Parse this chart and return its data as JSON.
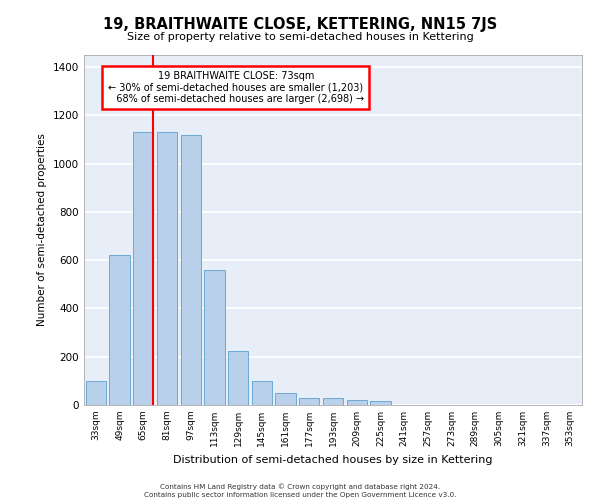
{
  "title": "19, BRAITHWAITE CLOSE, KETTERING, NN15 7JS",
  "subtitle": "Size of property relative to semi-detached houses in Kettering",
  "xlabel": "Distribution of semi-detached houses by size in Kettering",
  "ylabel": "Number of semi-detached properties",
  "categories": [
    "33sqm",
    "49sqm",
    "65sqm",
    "81sqm",
    "97sqm",
    "113sqm",
    "129sqm",
    "145sqm",
    "161sqm",
    "177sqm",
    "193sqm",
    "209sqm",
    "225sqm",
    "241sqm",
    "257sqm",
    "273sqm",
    "289sqm",
    "305sqm",
    "321sqm",
    "337sqm",
    "353sqm"
  ],
  "values": [
    100,
    620,
    1130,
    1130,
    1120,
    560,
    225,
    100,
    50,
    28,
    28,
    20,
    15,
    0,
    0,
    0,
    0,
    0,
    0,
    0,
    0
  ],
  "bar_color": "#b8d0ea",
  "bar_edge_color": "#6aaad4",
  "red_line_x": 2.42,
  "annotation_text": "19 BRAITHWAITE CLOSE: 73sqm\n← 30% of semi-detached houses are smaller (1,203)\n   68% of semi-detached houses are larger (2,698) →",
  "ylim": [
    0,
    1450
  ],
  "yticks": [
    0,
    200,
    400,
    600,
    800,
    1000,
    1200,
    1400
  ],
  "background_color": "#e8eef8",
  "grid_color": "#ffffff",
  "footnote1": "Contains HM Land Registry data © Crown copyright and database right 2024.",
  "footnote2": "Contains public sector information licensed under the Open Government Licence v3.0."
}
